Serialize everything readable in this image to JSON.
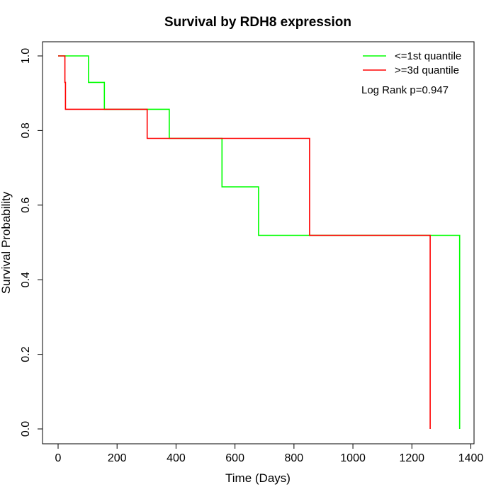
{
  "chart_data": {
    "type": "line",
    "subtype": "kaplan-meier step",
    "title": "Survival by RDH8 expression",
    "xlabel": "Time (Days)",
    "ylabel": "Survival Probability",
    "xlim": [
      0,
      1400
    ],
    "ylim": [
      0,
      1
    ],
    "xticks": [
      "0",
      "200",
      "400",
      "600",
      "800",
      "1000",
      "1200",
      "1400"
    ],
    "yticks": [
      "0.0",
      "0.2",
      "0.4",
      "0.6",
      "0.8",
      "1.0"
    ],
    "grid": false,
    "legend_position": "top-right",
    "annotation": "Log Rank p=0.947",
    "series": [
      {
        "name": "<=1st quantile",
        "color": "#00ff00",
        "x": [
          0,
          103,
          103,
          157,
          157,
          377,
          377,
          556,
          556,
          680,
          680,
          1362,
          1362
        ],
        "y": [
          1.0,
          1.0,
          0.929,
          0.929,
          0.857,
          0.857,
          0.779,
          0.779,
          0.649,
          0.649,
          0.519,
          0.519,
          0.0
        ]
      },
      {
        "name": ">=3d quantile",
        "color": "#ff0000",
        "x": [
          0,
          23,
          23,
          25,
          25,
          302,
          302,
          853,
          853,
          1262,
          1262
        ],
        "y": [
          1.0,
          1.0,
          0.929,
          0.929,
          0.857,
          0.857,
          0.779,
          0.779,
          0.519,
          0.519,
          0.0
        ]
      }
    ]
  }
}
